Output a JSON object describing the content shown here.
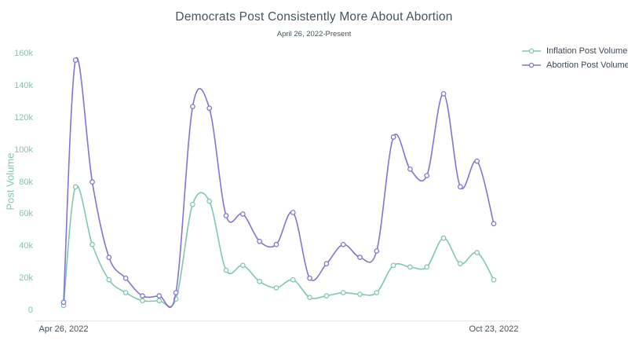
{
  "title": "Democrats Post Consistently More About Abortion",
  "subtitle": "April 26, 2022-Present",
  "colors": {
    "inflation_line": "#7cc9ae",
    "abortion_line": "#8274d4",
    "axis_tick_text": "#7cc9ae",
    "date_tick_text": "#43505c",
    "title_text": "#41545f",
    "legend_text": "#3c4956",
    "axis_line": "#e4e7eb",
    "background": "#ffffff"
  },
  "legend": {
    "position": "top-right",
    "items": [
      {
        "id": "inflation",
        "label": "Inflation Post Volume",
        "color": "#7cc9ae",
        "marker": "open-circle-line"
      },
      {
        "id": "abortion",
        "label": "Abortion Post Volume",
        "color": "#8274d4",
        "marker": "open-circle-line"
      }
    ]
  },
  "chart_data": {
    "type": "line",
    "title": "Democrats Post Consistently More About Abortion",
    "subtitle": "April 26, 2022-Present",
    "xlabel": "",
    "ylabel": "Post Volume",
    "line_shape": "spline",
    "markers": "open-circle",
    "grid": false,
    "legend_position": "top-right",
    "x_tick_labels": [
      "Apr 26, 2022",
      "Oct 23, 2022"
    ],
    "x_dates": [
      "Apr 26",
      "May 1",
      "May 8",
      "May 15",
      "May 22",
      "May 29",
      "Jun 5",
      "Jun 12",
      "Jun 19",
      "Jun 26",
      "Jul 3",
      "Jul 10",
      "Jul 17",
      "Jul 24",
      "Jul 31",
      "Aug 7",
      "Aug 14",
      "Aug 21",
      "Aug 28",
      "Sep 4",
      "Sep 11",
      "Sep 18",
      "Sep 25",
      "Oct 2",
      "Oct 9",
      "Oct 16",
      "Oct 23"
    ],
    "x_days": [
      0,
      5,
      12,
      19,
      26,
      33,
      40,
      47,
      54,
      61,
      68,
      75,
      82,
      89,
      96,
      103,
      110,
      117,
      124,
      131,
      138,
      145,
      152,
      159,
      166,
      173,
      180
    ],
    "y_ticks": [
      0,
      20000,
      40000,
      60000,
      80000,
      100000,
      120000,
      140000,
      160000
    ],
    "y_tick_labels": [
      "0",
      "20k",
      "40k",
      "60k",
      "80k",
      "100k",
      "120k",
      "140k",
      "160k"
    ],
    "ylim": [
      0,
      160000
    ],
    "series": [
      {
        "id": "inflation",
        "name": "Inflation Post Volume",
        "color": "#7cc9ae",
        "values": [
          3000,
          77000,
          41000,
          19000,
          11000,
          6000,
          6000,
          7000,
          66000,
          68000,
          25000,
          28000,
          18000,
          14000,
          19000,
          8000,
          9000,
          11000,
          10000,
          11000,
          28000,
          27000,
          27000,
          45000,
          29000,
          36000,
          19000
        ]
      },
      {
        "id": "abortion",
        "name": "Abortion Post Volume",
        "color": "#8274d4",
        "values": [
          5000,
          156000,
          80000,
          33000,
          20000,
          9000,
          9000,
          11000,
          127000,
          126000,
          59000,
          60000,
          43000,
          41000,
          61000,
          20000,
          29000,
          41000,
          33000,
          37000,
          108000,
          88000,
          84000,
          135000,
          77000,
          93000,
          54000
        ]
      }
    ]
  }
}
